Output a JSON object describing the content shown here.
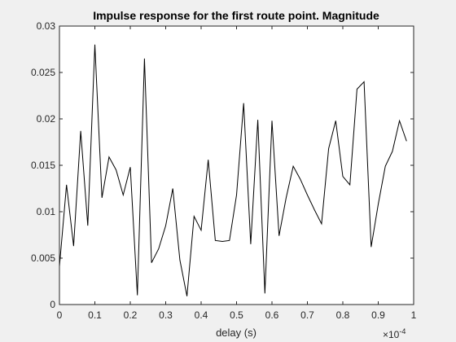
{
  "chart_data": {
    "type": "line",
    "title": "Impulse response for the first route point. Magnitude",
    "xlabel": "delay (s)",
    "ylabel": "",
    "x_exponent_label": "×10",
    "x_exponent_power": "-4",
    "xlim": [
      0,
      1
    ],
    "ylim": [
      0,
      0.03
    ],
    "xticks": [
      0,
      0.1,
      0.2,
      0.3,
      0.4,
      0.5,
      0.6,
      0.7,
      0.8,
      0.9,
      1
    ],
    "xtick_labels": [
      "0",
      "0.1",
      "0.2",
      "0.3",
      "0.4",
      "0.5",
      "0.6",
      "0.7",
      "0.8",
      "0.9",
      "1"
    ],
    "yticks": [
      0,
      0.005,
      0.01,
      0.015,
      0.02,
      0.025,
      0.03
    ],
    "ytick_labels": [
      "0",
      "0.005",
      "0.01",
      "0.015",
      "0.02",
      "0.025",
      "0.03"
    ],
    "grid": false,
    "series": [
      {
        "color": "#000000",
        "x": [
          0,
          0.02,
          0.04,
          0.06,
          0.08,
          0.1,
          0.12,
          0.14,
          0.16,
          0.18,
          0.2,
          0.22,
          0.24,
          0.26,
          0.28,
          0.3,
          0.32,
          0.34,
          0.36,
          0.38,
          0.4,
          0.42,
          0.44,
          0.46,
          0.48,
          0.5,
          0.52,
          0.54,
          0.56,
          0.58,
          0.6,
          0.62,
          0.64,
          0.66,
          0.68,
          0.7,
          0.72,
          0.74,
          0.76,
          0.78,
          0.8,
          0.82,
          0.84,
          0.86,
          0.88,
          0.9,
          0.92,
          0.94,
          0.96,
          0.98
        ],
        "y": [
          0.0041,
          0.0129,
          0.0063,
          0.0187,
          0.0085,
          0.028,
          0.0115,
          0.0159,
          0.0145,
          0.0118,
          0.0148,
          0.001,
          0.0265,
          0.0045,
          0.006,
          0.0085,
          0.0125,
          0.0048,
          0.0009,
          0.0095,
          0.008,
          0.0156,
          0.0069,
          0.0068,
          0.0069,
          0.0118,
          0.0217,
          0.0065,
          0.0199,
          0.0012,
          0.0198,
          0.0074,
          0.0115,
          0.0149,
          0.0135,
          0.0118,
          0.0102,
          0.0087,
          0.0168,
          0.0198,
          0.0138,
          0.0129,
          0.0232,
          0.024,
          0.0062,
          0.0108,
          0.0149,
          0.0165,
          0.0198,
          0.0176
        ]
      }
    ]
  }
}
